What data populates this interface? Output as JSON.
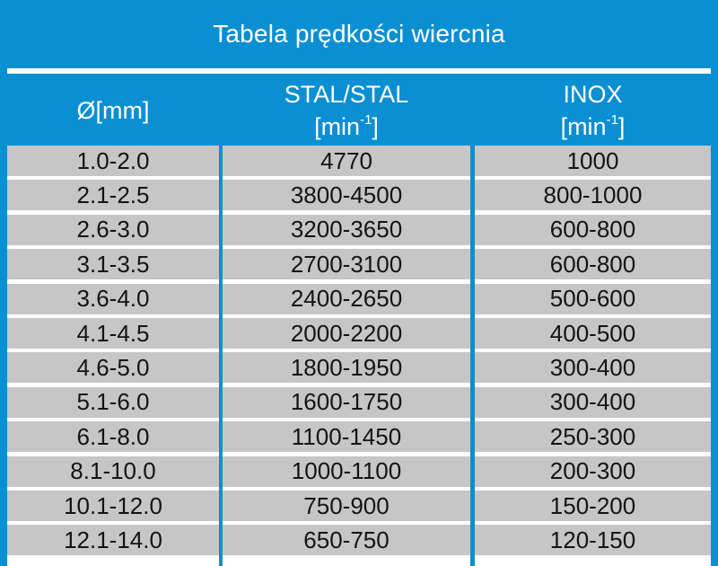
{
  "title": "Tabela prędkości wiercnia",
  "headers": {
    "diameter": "Ø[mm]",
    "steel": "STAL/STAL",
    "steel_unit_base": "[min",
    "steel_unit_sup": "-1",
    "steel_unit_end": "]",
    "inox": "INOX",
    "inox_unit_base": "[min",
    "inox_unit_sup": "-1",
    "inox_unit_end": "]"
  },
  "rows": [
    {
      "diameter": "1.0-2.0",
      "steel": "4770",
      "inox": "1000"
    },
    {
      "diameter": "2.1-2.5",
      "steel": "3800-4500",
      "inox": "800-1000"
    },
    {
      "diameter": "2.6-3.0",
      "steel": "3200-3650",
      "inox": "600-800"
    },
    {
      "diameter": "3.1-3.5",
      "steel": "2700-3100",
      "inox": "600-800"
    },
    {
      "diameter": "3.6-4.0",
      "steel": "2400-2650",
      "inox": "500-600"
    },
    {
      "diameter": "4.1-4.5",
      "steel": "2000-2200",
      "inox": "400-500"
    },
    {
      "diameter": "4.6-5.0",
      "steel": "1800-1950",
      "inox": "300-400"
    },
    {
      "diameter": "5.1-6.0",
      "steel": "1600-1750",
      "inox": "300-400"
    },
    {
      "diameter": "6.1-8.0",
      "steel": "1100-1450",
      "inox": "250-300"
    },
    {
      "diameter": "8.1-10.0",
      "steel": "1000-1100",
      "inox": "200-300"
    },
    {
      "diameter": "10.1-12.0",
      "steel": "750-900",
      "inox": "150-200"
    },
    {
      "diameter": "12.1-14.0",
      "steel": "650-750",
      "inox": "120-150"
    }
  ],
  "colors": {
    "background": "#0a8fd3",
    "cell": "#c6c6c6",
    "header_text": "#ffffff",
    "cell_text": "#141414"
  }
}
